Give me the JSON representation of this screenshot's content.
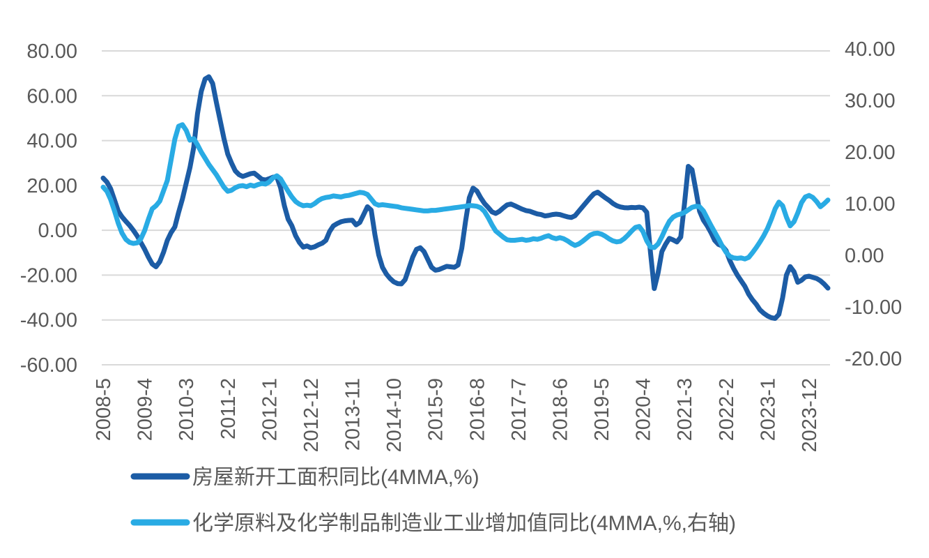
{
  "chart_data": {
    "type": "line",
    "title": "",
    "x_start": "2008-05",
    "x_frequency": "monthly",
    "x_tick_step_months": 11,
    "x_tick_labels": [
      "2008-5",
      "2009-4",
      "2010-3",
      "2011-2",
      "2012-1",
      "2012-12",
      "2013-11",
      "2014-10",
      "2015-9",
      "2016-8",
      "2017-7",
      "2018-6",
      "2019-5",
      "2020-4",
      "2021-3",
      "2022-2",
      "2023-1",
      "2023-12"
    ],
    "grid": "horizontal",
    "legend_position": "bottom-left",
    "axes": {
      "left": {
        "max": 80,
        "min": -60,
        "tick_step": 20,
        "tick_labels": [
          "80.00",
          "60.00",
          "40.00",
          "20.00",
          "0.00",
          "-20.00",
          "-40.00",
          "-60.00"
        ],
        "tick_values": [
          80,
          60,
          40,
          20,
          0,
          -20,
          -40,
          -60
        ]
      },
      "right": {
        "max": 40,
        "min": -20,
        "tick_step": 10,
        "tick_labels": [
          "40.00",
          "30.00",
          "20.00",
          "10.00",
          "0.00",
          "-10.00",
          "-20.00"
        ],
        "tick_values": [
          40,
          30,
          20,
          10,
          0,
          -10,
          -20
        ]
      }
    },
    "series": [
      {
        "name": "房屋新开工面积同比(4MMA,%)",
        "axis": "left",
        "color": "#1C5CA5",
        "values": [
          23.3,
          21.5,
          18.5,
          13.5,
          8.5,
          6,
          4,
          2.2,
          0,
          -2.5,
          -5.5,
          -8.5,
          -12,
          -15,
          -16.3,
          -14,
          -9.8,
          -4.5,
          -1,
          1.5,
          8,
          14,
          21,
          28,
          37,
          52,
          62,
          67.5,
          68.5,
          65.5,
          57,
          49,
          41,
          34,
          30,
          26.5,
          24.8,
          24,
          24.6,
          25.2,
          25.5,
          24.2,
          22.8,
          22.4,
          23,
          23.7,
          23.8,
          19,
          11,
          5,
          2,
          -2.5,
          -5.5,
          -7.5,
          -7,
          -7.8,
          -7.4,
          -6.5,
          -5.8,
          -4.5,
          -0.5,
          2,
          3,
          3.8,
          4.2,
          4.4,
          4.5,
          2.4,
          3.5,
          7,
          10.5,
          9,
          -2,
          -11,
          -16.5,
          -19.5,
          -21.5,
          -23,
          -23.8,
          -23.9,
          -22,
          -17,
          -12,
          -8.5,
          -7.8,
          -9.5,
          -13,
          -16.5,
          -17.8,
          -17.5,
          -16.8,
          -16.1,
          -16.3,
          -16.5,
          -15.5,
          -8,
          4,
          14.5,
          18.8,
          17.5,
          14.5,
          12,
          10.2,
          8.2,
          7.5,
          8.5,
          10,
          11.3,
          11.7,
          11,
          10.2,
          9.4,
          8.8,
          8.5,
          7.9,
          7.3,
          7,
          6.4,
          6.6,
          7,
          7.2,
          7,
          6.5,
          6,
          5.7,
          6.5,
          8.5,
          10.5,
          12.5,
          14.5,
          16.3,
          17,
          15.8,
          14.5,
          13.4,
          12,
          11,
          10.4,
          10.1,
          10,
          10.2,
          10.1,
          10.3,
          10,
          8,
          -10,
          -26,
          -19,
          -9.5,
          -6.2,
          -3.6,
          -4.3,
          -5.2,
          -3,
          12,
          28.5,
          27,
          18,
          8.5,
          4.5,
          2,
          -1,
          -4.5,
          -6.3,
          -7,
          -9,
          -13.5,
          -17,
          -20,
          -22.5,
          -25,
          -28.5,
          -31,
          -33,
          -35.5,
          -37,
          -38.2,
          -39,
          -39.3,
          -37.5,
          -30,
          -20,
          -16.2,
          -18.5,
          -23.2,
          -22.3,
          -20.8,
          -20.5,
          -21,
          -21.5,
          -22.5,
          -24,
          -25.8
        ]
      },
      {
        "name": "化学原料及化学制品制造业工业增加值同比(4MMA,%,右轴)",
        "axis": "right",
        "color": "#29ABE4",
        "values": [
          13.2,
          12.4,
          10.8,
          8.6,
          6.2,
          4.3,
          3.1,
          2.5,
          2.3,
          2.4,
          3.2,
          4.8,
          7,
          9,
          9.6,
          10.5,
          12.5,
          14.5,
          18.5,
          22.5,
          25,
          25.3,
          24.2,
          22.3,
          22.6,
          21.4,
          20,
          18.8,
          17.6,
          16.6,
          15.6,
          14.4,
          13.2,
          12.4,
          12.6,
          13.1,
          13.4,
          13.5,
          13.3,
          13.6,
          13.4,
          13.7,
          13.9,
          13.8,
          14.2,
          15,
          15.4,
          14.8,
          13.6,
          12.4,
          11.3,
          10.4,
          9.9,
          9.6,
          9.7,
          9.6,
          10,
          10.6,
          11,
          11.2,
          11.3,
          11.5,
          11.4,
          11.3,
          11.5,
          11.6,
          11.8,
          12,
          12.2,
          12.1,
          11.8,
          10.9,
          10,
          9.7,
          9.8,
          9.7,
          9.6,
          9.5,
          9.4,
          9.2,
          9.1,
          9,
          8.9,
          8.8,
          8.7,
          8.6,
          8.6,
          8.7,
          8.7,
          8.8,
          8.9,
          9,
          9.1,
          9.2,
          9.3,
          9.4,
          9.5,
          9.65,
          9.6,
          9.5,
          9.2,
          8.5,
          7.3,
          5.9,
          4.7,
          4.1,
          3.5,
          3,
          2.9,
          2.9,
          3,
          3.1,
          2.9,
          3,
          3.2,
          3.1,
          3.3,
          3.6,
          3.8,
          3.4,
          3.2,
          3.4,
          3.2,
          2.8,
          2.3,
          1.9,
          2.2,
          2.7,
          3.3,
          3.9,
          4.2,
          4.3,
          4.1,
          3.7,
          3.2,
          2.8,
          2.6,
          2.7,
          3.2,
          3.9,
          4.7,
          5.4,
          5.6,
          4.6,
          2.8,
          1.6,
          1.5,
          2.2,
          3.6,
          5.2,
          6.6,
          7.4,
          7.8,
          8,
          8.3,
          8.8,
          9.3,
          9.5,
          9.4,
          8.6,
          7.2,
          5.8,
          4.5,
          3.2,
          1.8,
          0.6,
          -0.2,
          -0.5,
          -0.6,
          -0.5,
          -0.7,
          -0.4,
          0.5,
          1.5,
          2.6,
          3.8,
          5.2,
          7,
          9,
          10.3,
          9.6,
          7.4,
          5.7,
          6.5,
          8.2,
          10.2,
          11.3,
          11.6,
          11.2,
          10.4,
          9.4,
          10,
          10.7
        ]
      }
    ],
    "colors": {
      "grid": "#D9D9D9",
      "axis_text": "#595959",
      "background": "#FFFFFF"
    }
  }
}
